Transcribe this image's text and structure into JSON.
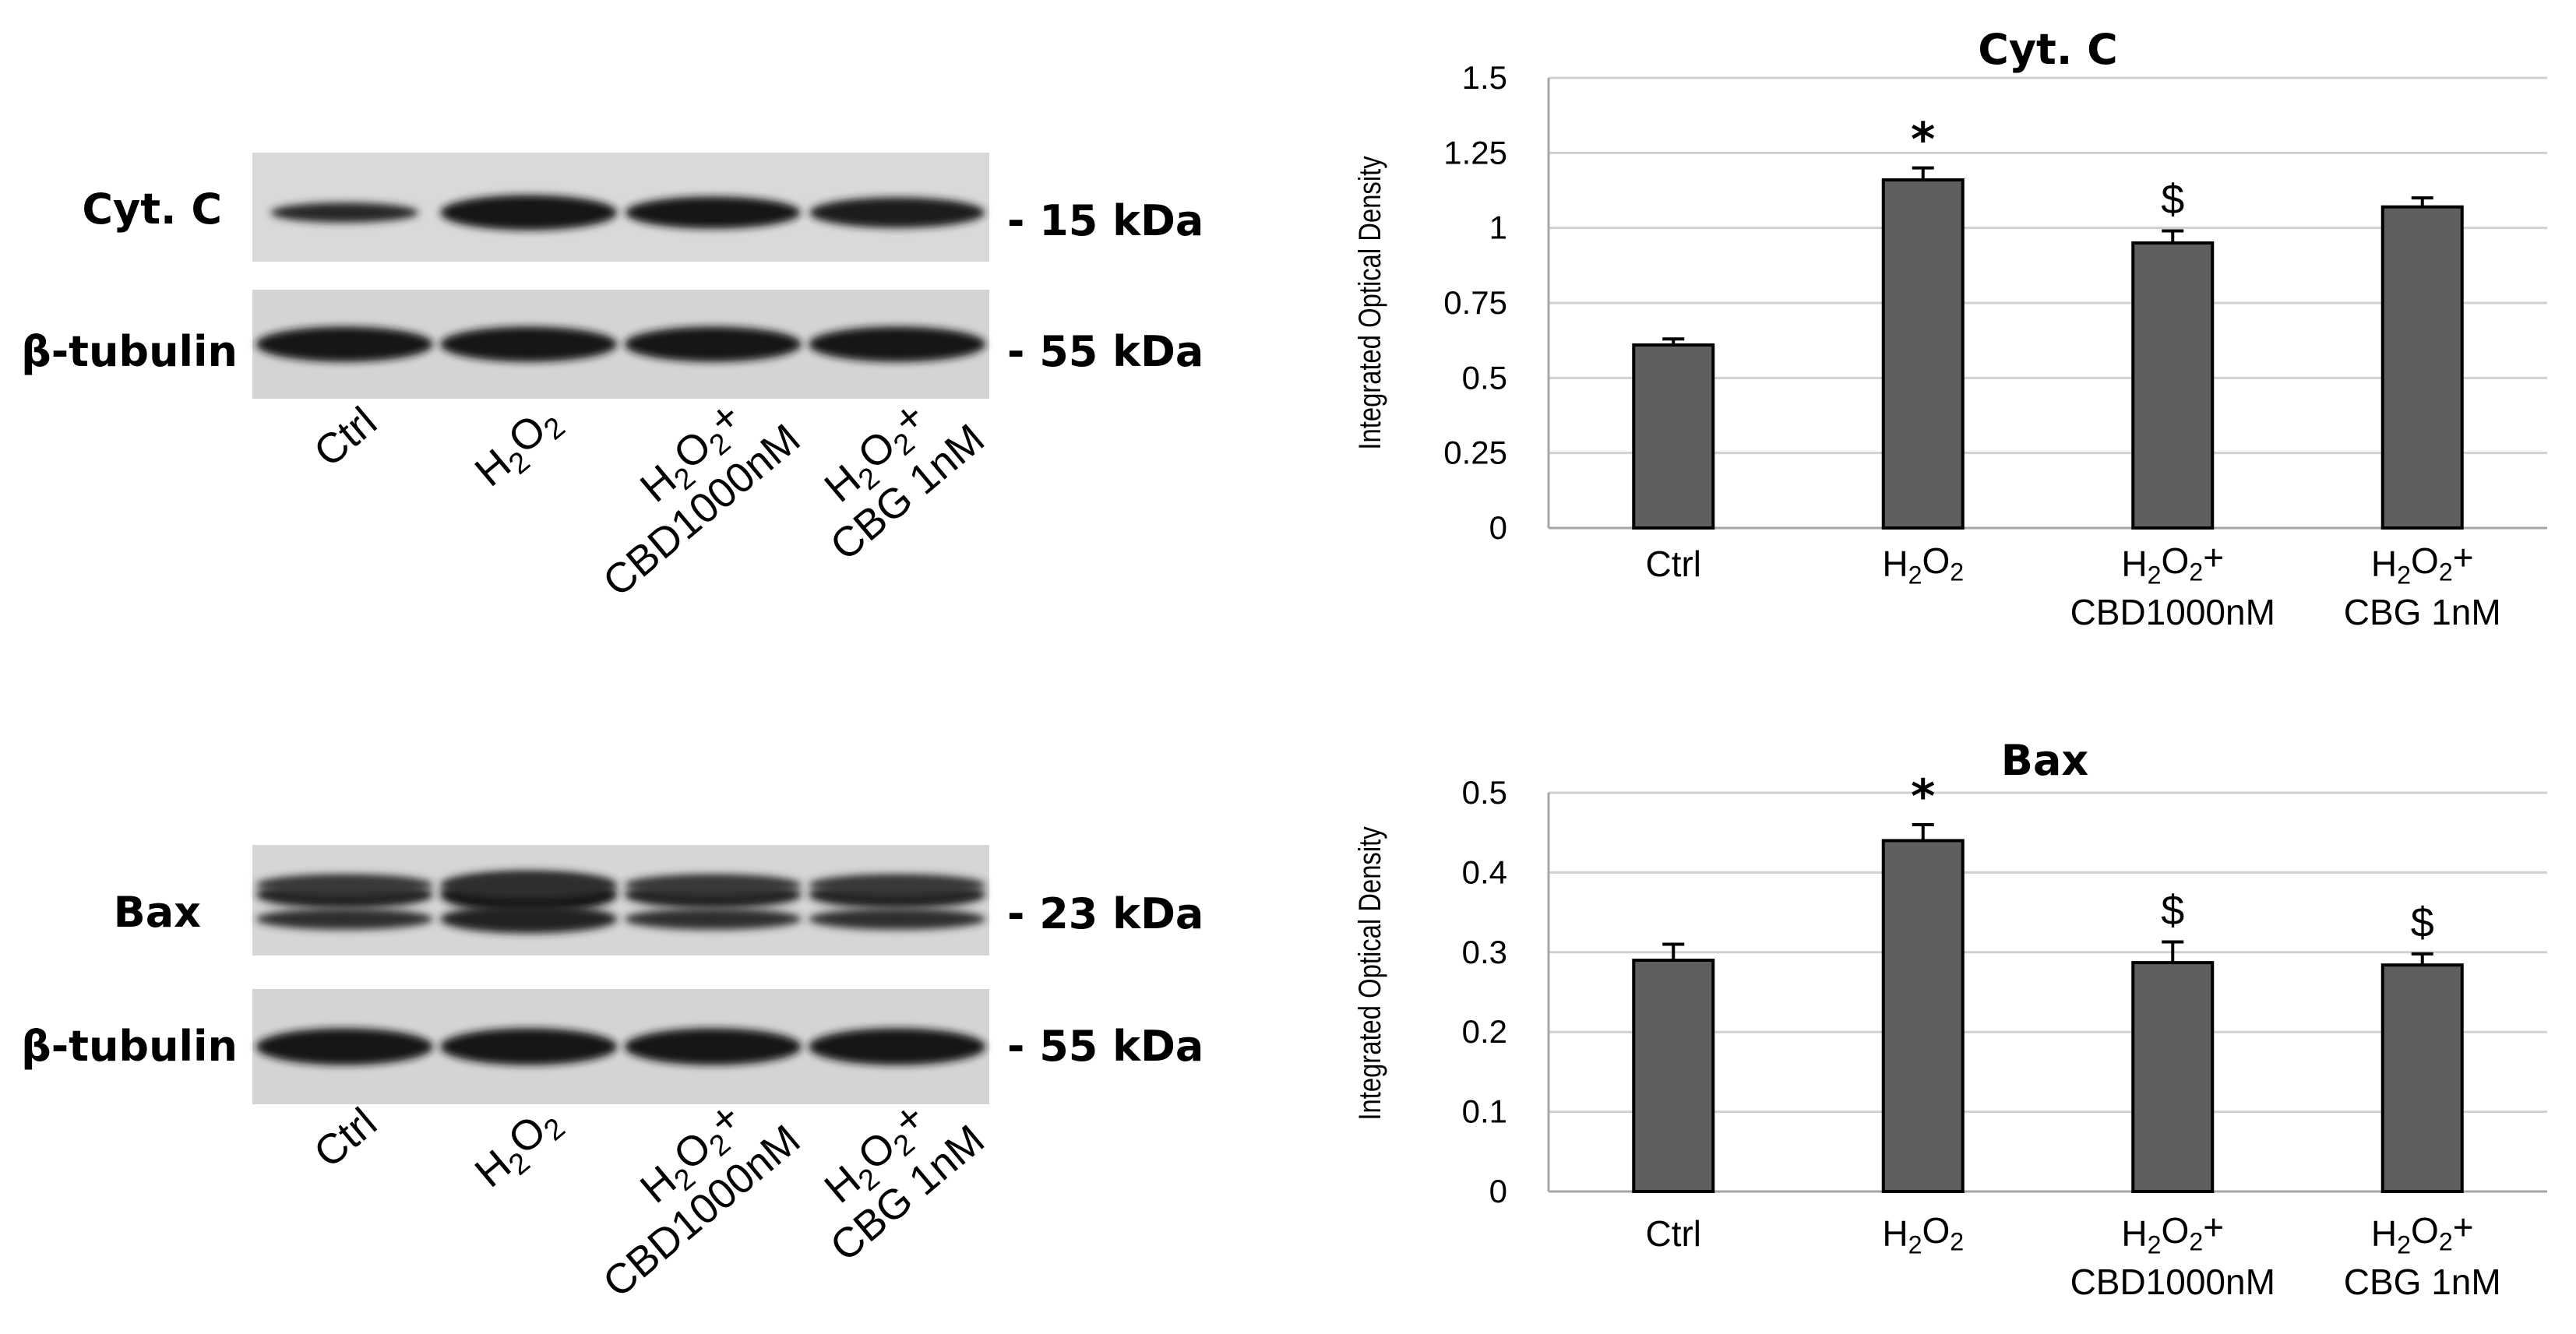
{
  "blots": [
    {
      "rows": [
        {
          "label": "Cyt. C",
          "kda": "- 15 kDa",
          "bands": [
            {
              "th": 0.45,
              "dark": 0.85,
              "w": 0.82
            },
            {
              "th": 0.95,
              "dark": 1.0,
              "w": 0.98
            },
            {
              "th": 0.85,
              "dark": 0.97,
              "w": 0.97
            },
            {
              "th": 0.8,
              "dark": 0.95,
              "w": 0.97
            }
          ]
        },
        {
          "label": "β-tubulin",
          "kda": "- 55 kDa",
          "bands": [
            {
              "th": 0.95,
              "dark": 1.0,
              "w": 0.98
            },
            {
              "th": 0.95,
              "dark": 1.0,
              "w": 0.98
            },
            {
              "th": 0.95,
              "dark": 1.0,
              "w": 0.98
            },
            {
              "th": 0.95,
              "dark": 1.0,
              "w": 0.98
            }
          ]
        }
      ],
      "lanes": [
        {
          "main": "Ctrl"
        },
        {
          "main": "H",
          "sub1": "2",
          "mid": "O",
          "sub2": "2",
          "tail": ""
        },
        {
          "main": "H",
          "sub1": "2",
          "mid": "O",
          "sub2": "2",
          "tail": "+",
          "line2": "CBD1000nM"
        },
        {
          "main": "H",
          "sub1": "2",
          "mid": "O",
          "sub2": "2",
          "tail": "+",
          "line2": "CBG 1nM"
        }
      ]
    },
    {
      "rows": [
        {
          "label": "Bax",
          "kda": "- 23 kDa",
          "bands": [
            {
              "th": 0.7,
              "dark": 0.9,
              "w": 0.98
            },
            {
              "th": 1.0,
              "dark": 1.0,
              "w": 0.98
            },
            {
              "th": 0.7,
              "dark": 0.9,
              "w": 0.98
            },
            {
              "th": 0.7,
              "dark": 0.9,
              "w": 0.98
            }
          ]
        },
        {
          "label": "β-tubulin",
          "kda": "- 55 kDa",
          "bands": [
            {
              "th": 0.95,
              "dark": 1.0,
              "w": 0.98
            },
            {
              "th": 0.95,
              "dark": 1.0,
              "w": 0.98
            },
            {
              "th": 0.95,
              "dark": 1.0,
              "w": 0.98
            },
            {
              "th": 0.95,
              "dark": 1.0,
              "w": 0.98
            }
          ]
        }
      ],
      "lanes": [
        {
          "main": "Ctrl"
        },
        {
          "main": "H",
          "sub1": "2",
          "mid": "O",
          "sub2": "2",
          "tail": ""
        },
        {
          "main": "H",
          "sub1": "2",
          "mid": "O",
          "sub2": "2",
          "tail": "+",
          "line2": "CBD1000nM"
        },
        {
          "main": "H",
          "sub1": "2",
          "mid": "O",
          "sub2": "2",
          "tail": "+",
          "line2": "CBG 1nM"
        }
      ]
    }
  ],
  "chart_data": [
    {
      "type": "bar",
      "title": "Cyt. C",
      "ylabel": "Integrated Optical Density",
      "xlabel": "",
      "categories": [
        "Ctrl",
        "H2O2",
        "H2O2+ CBD1000nM",
        "H2O2+ CBG 1nM"
      ],
      "category_labels": [
        {
          "main": "Ctrl"
        },
        {
          "main": "H",
          "sub1": "2",
          "mid": "O",
          "sub2": "2",
          "tail": ""
        },
        {
          "main": "H",
          "sub1": "2",
          "mid": "O",
          "sub2": "2",
          "tail": "+",
          "line2": "CBD1000nM"
        },
        {
          "main": "H",
          "sub1": "2",
          "mid": "O",
          "sub2": "2",
          "tail": "+",
          "line2": "CBG 1nM"
        }
      ],
      "values": [
        0.61,
        1.16,
        0.95,
        1.07
      ],
      "errors": [
        0.02,
        0.04,
        0.04,
        0.03
      ],
      "annotations": [
        "",
        "*",
        "$",
        ""
      ],
      "ylim": [
        0,
        1.5
      ],
      "yticks": [
        0,
        0.25,
        0.5,
        0.75,
        1,
        1.25,
        1.5
      ],
      "ytick_labels": [
        "0",
        "0.25",
        "0.5",
        "0.75",
        "1",
        "1.25",
        "1.5"
      ],
      "grid": true,
      "bar_color": "#5f5f5f"
    },
    {
      "type": "bar",
      "title": "Bax",
      "ylabel": "Integrated Optical Density",
      "xlabel": "",
      "categories": [
        "Ctrl",
        "H2O2",
        "H2O2+ CBD1000nM",
        "H2O2+ CBG 1nM"
      ],
      "category_labels": [
        {
          "main": "Ctrl"
        },
        {
          "main": "H",
          "sub1": "2",
          "mid": "O",
          "sub2": "2",
          "tail": ""
        },
        {
          "main": "H",
          "sub1": "2",
          "mid": "O",
          "sub2": "2",
          "tail": "+",
          "line2": "CBD1000nM"
        },
        {
          "main": "H",
          "sub1": "2",
          "mid": "O",
          "sub2": "2",
          "tail": "+",
          "line2": "CBG 1nM"
        }
      ],
      "values": [
        0.29,
        0.44,
        0.287,
        0.284
      ],
      "errors": [
        0.02,
        0.02,
        0.026,
        0.014
      ],
      "annotations": [
        "",
        "*",
        "$",
        "$"
      ],
      "ylim": [
        0,
        0.5
      ],
      "yticks": [
        0,
        0.1,
        0.2,
        0.3,
        0.4,
        0.5
      ],
      "ytick_labels": [
        "0",
        "0.1",
        "0.2",
        "0.3",
        "0.4",
        "0.5"
      ],
      "grid": true,
      "bar_color": "#5f5f5f"
    }
  ]
}
